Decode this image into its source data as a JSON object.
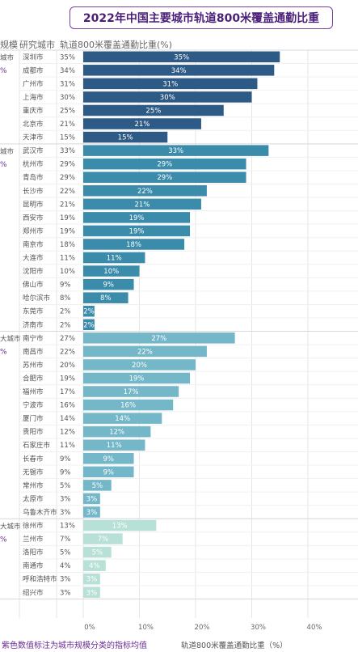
{
  "title": "2022年中国主要城市轨道800米覆盖通勤比重",
  "headers": {
    "tier": "规模",
    "city": "研究城市",
    "metric": "轨道800米覆盖通勤比重(%)"
  },
  "footer_note": "紫色数值标注为城市规模分类的指标均值",
  "colors": {
    "tier1": "#2e5a86",
    "tier2": "#3b8bab",
    "tier3": "#73b7c8",
    "tier4": "#b7e1d6",
    "tier_avg_text": "#6a2c91",
    "title_border": "#7b3fa0"
  },
  "chart_data": {
    "type": "bar",
    "orientation": "horizontal",
    "xlabel": "轨道800米覆盖通勤比重（%）",
    "xlim": [
      0,
      40
    ],
    "xticks": [
      "0%",
      "10%",
      "20%",
      "30%",
      "40%"
    ],
    "grid": true,
    "groups": [
      {
        "tier_label": "城市",
        "tier_avg": "%",
        "color_key": "tier1",
        "cities": [
          "深圳市",
          "成都市",
          "广州市",
          "上海市",
          "重庆市",
          "北京市",
          "天津市"
        ],
        "values": [
          35,
          34,
          31,
          30,
          25,
          21,
          15
        ],
        "labels": [
          "35%",
          "34%",
          "31%",
          "30%",
          "25%",
          "21%",
          "15%"
        ]
      },
      {
        "tier_label": "城市",
        "tier_avg": "%",
        "color_key": "tier2",
        "cities": [
          "武汉市",
          "杭州市",
          "青岛市",
          "长沙市",
          "昆明市",
          "西安市",
          "郑州市",
          "南京市",
          "大连市",
          "沈阳市",
          "佛山市",
          "哈尔滨市",
          "东莞市",
          "济南市"
        ],
        "values": [
          33,
          29,
          29,
          22,
          21,
          19,
          19,
          18,
          11,
          10,
          9,
          8,
          2,
          2
        ],
        "labels": [
          "33%",
          "29%",
          "29%",
          "22%",
          "21%",
          "19%",
          "19%",
          "18%",
          "11%",
          "10%",
          "9%",
          "8%",
          "2%",
          "2%"
        ]
      },
      {
        "tier_label": "大城市",
        "tier_avg": "%",
        "color_key": "tier3",
        "cities": [
          "南宁市",
          "南昌市",
          "苏州市",
          "合肥市",
          "福州市",
          "宁波市",
          "厦门市",
          "贵阳市",
          "石家庄市",
          "长春市",
          "无锡市",
          "常州市",
          "太原市",
          "乌鲁木齐市"
        ],
        "values": [
          27,
          22,
          20,
          19,
          17,
          16,
          14,
          12,
          11,
          9,
          9,
          5,
          3,
          3
        ],
        "labels": [
          "27%",
          "22%",
          "20%",
          "19%",
          "17%",
          "16%",
          "14%",
          "12%",
          "11%",
          "9%",
          "9%",
          "5%",
          "3%",
          "3%"
        ]
      },
      {
        "tier_label": "大城市",
        "tier_avg": "%",
        "color_key": "tier4",
        "cities": [
          "徐州市",
          "兰州市",
          "洛阳市",
          "南通市",
          "呼和浩特市",
          "绍兴市"
        ],
        "values": [
          13,
          7,
          5,
          4,
          3,
          3
        ],
        "labels": [
          "13%",
          "7%",
          "5%",
          "4%",
          "3%",
          "3%"
        ]
      }
    ]
  }
}
